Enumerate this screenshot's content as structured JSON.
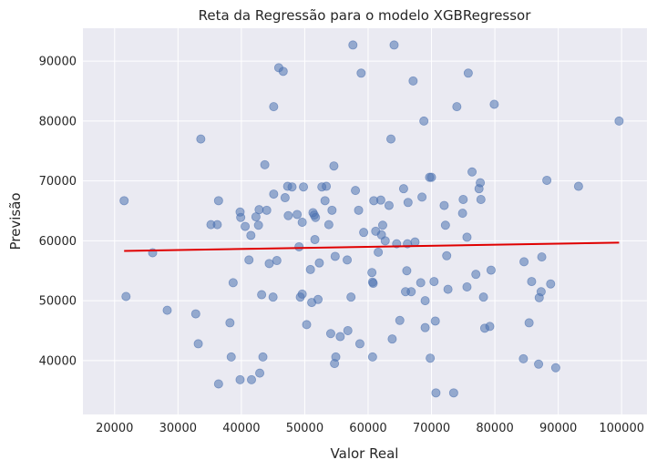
{
  "chart_data": {
    "type": "scatter",
    "title": "Reta da Regressão para o modelo XGBRegressor",
    "xlabel": "Valor Real",
    "ylabel": "Previsão",
    "xlim": [
      15000,
      104000
    ],
    "ylim": [
      31000,
      95500
    ],
    "xticks": [
      20000,
      30000,
      40000,
      50000,
      60000,
      70000,
      80000,
      90000,
      100000
    ],
    "yticks": [
      40000,
      50000,
      60000,
      70000,
      80000,
      90000
    ],
    "xtick_labels": [
      "20000",
      "30000",
      "40000",
      "50000",
      "60000",
      "70000",
      "80000",
      "90000",
      "100000"
    ],
    "ytick_labels": [
      "40000",
      "50000",
      "60000",
      "70000",
      "80000",
      "90000"
    ],
    "grid": true,
    "colors": {
      "background": "#EAEAF2",
      "grid": "#FFFFFF",
      "points": "#4C72B0",
      "line": "#E00000"
    },
    "points": [
      [
        21500,
        66700
      ],
      [
        21800,
        50700
      ],
      [
        26000,
        58000
      ],
      [
        28300,
        48400
      ],
      [
        32800,
        47800
      ],
      [
        33200,
        42800
      ],
      [
        33600,
        77000
      ],
      [
        35200,
        62700
      ],
      [
        36200,
        62700
      ],
      [
        36400,
        66700
      ],
      [
        36400,
        36100
      ],
      [
        38200,
        46300
      ],
      [
        38400,
        40600
      ],
      [
        38700,
        53000
      ],
      [
        39800,
        64800
      ],
      [
        39800,
        36800
      ],
      [
        39900,
        63900
      ],
      [
        40600,
        62400
      ],
      [
        41200,
        56800
      ],
      [
        41500,
        60900
      ],
      [
        41600,
        36800
      ],
      [
        42300,
        64000
      ],
      [
        42700,
        62600
      ],
      [
        42800,
        65200
      ],
      [
        42900,
        37900
      ],
      [
        43200,
        51000
      ],
      [
        43400,
        40600
      ],
      [
        43700,
        72700
      ],
      [
        44000,
        65100
      ],
      [
        44400,
        56200
      ],
      [
        45000,
        50600
      ],
      [
        45100,
        67800
      ],
      [
        45100,
        82400
      ],
      [
        45600,
        56700
      ],
      [
        45900,
        88900
      ],
      [
        46600,
        88300
      ],
      [
        46900,
        67200
      ],
      [
        47300,
        69100
      ],
      [
        47400,
        64200
      ],
      [
        48000,
        69000
      ],
      [
        48800,
        64400
      ],
      [
        49100,
        59000
      ],
      [
        49300,
        50600
      ],
      [
        49600,
        63100
      ],
      [
        49600,
        51100
      ],
      [
        49800,
        69000
      ],
      [
        50300,
        46000
      ],
      [
        50900,
        55200
      ],
      [
        51100,
        49700
      ],
      [
        51300,
        64700
      ],
      [
        51500,
        64300
      ],
      [
        51600,
        60200
      ],
      [
        51700,
        63900
      ],
      [
        52100,
        50200
      ],
      [
        52300,
        56300
      ],
      [
        52700,
        69000
      ],
      [
        53200,
        66700
      ],
      [
        53400,
        69100
      ],
      [
        53800,
        62700
      ],
      [
        54100,
        44500
      ],
      [
        54300,
        65100
      ],
      [
        54600,
        72500
      ],
      [
        54700,
        39500
      ],
      [
        54800,
        57400
      ],
      [
        54900,
        40600
      ],
      [
        55600,
        44000
      ],
      [
        56700,
        56800
      ],
      [
        56800,
        45000
      ],
      [
        57300,
        50600
      ],
      [
        57600,
        92700
      ],
      [
        58000,
        68400
      ],
      [
        58500,
        65100
      ],
      [
        58700,
        42800
      ],
      [
        58900,
        88000
      ],
      [
        59300,
        61400
      ],
      [
        60600,
        54700
      ],
      [
        60700,
        40600
      ],
      [
        60700,
        53100
      ],
      [
        60800,
        52900
      ],
      [
        60900,
        66700
      ],
      [
        61200,
        61600
      ],
      [
        61600,
        58100
      ],
      [
        62000,
        66800
      ],
      [
        62100,
        61000
      ],
      [
        62300,
        62600
      ],
      [
        62700,
        60000
      ],
      [
        63300,
        65900
      ],
      [
        63600,
        77000
      ],
      [
        63800,
        43600
      ],
      [
        64100,
        92700
      ],
      [
        64500,
        59500
      ],
      [
        65000,
        46700
      ],
      [
        65600,
        68700
      ],
      [
        65900,
        51500
      ],
      [
        66100,
        55000
      ],
      [
        66200,
        59500
      ],
      [
        66300,
        66400
      ],
      [
        66800,
        51500
      ],
      [
        67100,
        86700
      ],
      [
        67400,
        59800
      ],
      [
        68300,
        53000
      ],
      [
        68500,
        67300
      ],
      [
        68800,
        80000
      ],
      [
        69000,
        50000
      ],
      [
        69000,
        45500
      ],
      [
        69700,
        70600
      ],
      [
        69800,
        40400
      ],
      [
        70000,
        70600
      ],
      [
        70400,
        53200
      ],
      [
        70600,
        46600
      ],
      [
        70700,
        34600
      ],
      [
        72000,
        65900
      ],
      [
        72200,
        62600
      ],
      [
        72400,
        57500
      ],
      [
        72600,
        51900
      ],
      [
        73500,
        34600
      ],
      [
        74000,
        82400
      ],
      [
        74900,
        64600
      ],
      [
        75000,
        66900
      ],
      [
        75600,
        60600
      ],
      [
        75600,
        52300
      ],
      [
        75800,
        88000
      ],
      [
        76400,
        71500
      ],
      [
        77000,
        54400
      ],
      [
        77500,
        68700
      ],
      [
        77700,
        69700
      ],
      [
        77800,
        66900
      ],
      [
        78200,
        50600
      ],
      [
        78400,
        45400
      ],
      [
        79200,
        45700
      ],
      [
        79400,
        55100
      ],
      [
        79900,
        82800
      ],
      [
        84500,
        40300
      ],
      [
        84600,
        56500
      ],
      [
        85400,
        46300
      ],
      [
        85800,
        53200
      ],
      [
        86900,
        39400
      ],
      [
        87000,
        50500
      ],
      [
        87300,
        51500
      ],
      [
        87400,
        57300
      ],
      [
        88200,
        70100
      ],
      [
        88800,
        52800
      ],
      [
        89600,
        38800
      ],
      [
        93200,
        69100
      ],
      [
        99600,
        80000
      ]
    ],
    "regression_line": {
      "x": [
        21500,
        99600
      ],
      "y": [
        58300,
        59700
      ]
    }
  }
}
